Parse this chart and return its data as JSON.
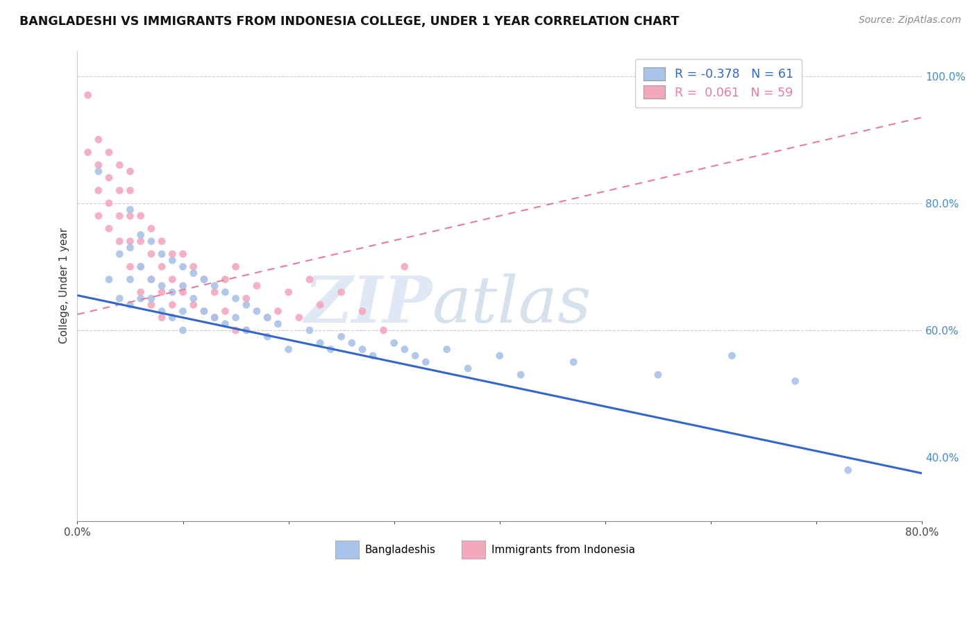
{
  "title": "BANGLADESHI VS IMMIGRANTS FROM INDONESIA COLLEGE, UNDER 1 YEAR CORRELATION CHART",
  "source": "Source: ZipAtlas.com",
  "ylabel": "College, Under 1 year",
  "xlim": [
    0.0,
    0.8
  ],
  "ylim": [
    0.3,
    1.04
  ],
  "xticks": [
    0.0,
    0.1,
    0.2,
    0.3,
    0.4,
    0.5,
    0.6,
    0.7,
    0.8
  ],
  "xticklabels": [
    "0.0%",
    "",
    "",
    "",
    "",
    "",
    "",
    "",
    "80.0%"
  ],
  "yticks": [
    0.4,
    0.6,
    0.8,
    1.0
  ],
  "yticklabels": [
    "40.0%",
    "60.0%",
    "80.0%",
    "100.0%"
  ],
  "blue_r": -0.378,
  "blue_n": 61,
  "pink_r": 0.061,
  "pink_n": 59,
  "blue_color": "#a8c4e8",
  "pink_color": "#f4a8be",
  "blue_line_color": "#3366cc",
  "pink_line_color": "#e87a9a",
  "watermark_zip": "ZIP",
  "watermark_atlas": "atlas",
  "legend_label_blue": "Bangladeshis",
  "legend_label_pink": "Immigrants from Indonesia",
  "blue_scatter_x": [
    0.02,
    0.03,
    0.04,
    0.04,
    0.05,
    0.05,
    0.05,
    0.05,
    0.06,
    0.06,
    0.06,
    0.07,
    0.07,
    0.07,
    0.08,
    0.08,
    0.08,
    0.09,
    0.09,
    0.09,
    0.1,
    0.1,
    0.1,
    0.1,
    0.11,
    0.11,
    0.12,
    0.12,
    0.13,
    0.13,
    0.14,
    0.14,
    0.15,
    0.15,
    0.16,
    0.16,
    0.17,
    0.18,
    0.18,
    0.19,
    0.2,
    0.22,
    0.23,
    0.24,
    0.25,
    0.26,
    0.27,
    0.28,
    0.3,
    0.31,
    0.32,
    0.33,
    0.35,
    0.37,
    0.4,
    0.42,
    0.47,
    0.55,
    0.62,
    0.68,
    0.73
  ],
  "blue_scatter_y": [
    0.85,
    0.68,
    0.72,
    0.65,
    0.79,
    0.73,
    0.68,
    0.64,
    0.75,
    0.7,
    0.65,
    0.74,
    0.68,
    0.65,
    0.72,
    0.67,
    0.63,
    0.71,
    0.66,
    0.62,
    0.7,
    0.67,
    0.63,
    0.6,
    0.69,
    0.65,
    0.68,
    0.63,
    0.67,
    0.62,
    0.66,
    0.61,
    0.65,
    0.62,
    0.64,
    0.6,
    0.63,
    0.62,
    0.59,
    0.61,
    0.57,
    0.6,
    0.58,
    0.57,
    0.59,
    0.58,
    0.57,
    0.56,
    0.58,
    0.57,
    0.56,
    0.55,
    0.57,
    0.54,
    0.56,
    0.53,
    0.55,
    0.53,
    0.56,
    0.52,
    0.38
  ],
  "pink_scatter_x": [
    0.01,
    0.01,
    0.02,
    0.02,
    0.02,
    0.02,
    0.03,
    0.03,
    0.03,
    0.03,
    0.04,
    0.04,
    0.04,
    0.04,
    0.05,
    0.05,
    0.05,
    0.05,
    0.05,
    0.06,
    0.06,
    0.06,
    0.06,
    0.07,
    0.07,
    0.07,
    0.07,
    0.08,
    0.08,
    0.08,
    0.08,
    0.09,
    0.09,
    0.09,
    0.1,
    0.1,
    0.11,
    0.11,
    0.12,
    0.12,
    0.13,
    0.13,
    0.14,
    0.14,
    0.15,
    0.15,
    0.16,
    0.16,
    0.17,
    0.18,
    0.19,
    0.2,
    0.21,
    0.22,
    0.23,
    0.25,
    0.27,
    0.29,
    0.31
  ],
  "pink_scatter_y": [
    0.97,
    0.88,
    0.9,
    0.86,
    0.82,
    0.78,
    0.88,
    0.84,
    0.8,
    0.76,
    0.86,
    0.82,
    0.78,
    0.74,
    0.85,
    0.82,
    0.78,
    0.74,
    0.7,
    0.78,
    0.74,
    0.7,
    0.66,
    0.76,
    0.72,
    0.68,
    0.64,
    0.74,
    0.7,
    0.66,
    0.62,
    0.72,
    0.68,
    0.64,
    0.72,
    0.66,
    0.7,
    0.64,
    0.68,
    0.63,
    0.66,
    0.62,
    0.68,
    0.63,
    0.7,
    0.6,
    0.65,
    0.6,
    0.67,
    0.62,
    0.63,
    0.66,
    0.62,
    0.68,
    0.64,
    0.66,
    0.63,
    0.6,
    0.7
  ],
  "blue_line_x": [
    0.0,
    0.8
  ],
  "blue_line_y": [
    0.655,
    0.375
  ],
  "pink_line_x": [
    0.0,
    0.8
  ],
  "pink_line_y": [
    0.625,
    0.935
  ]
}
